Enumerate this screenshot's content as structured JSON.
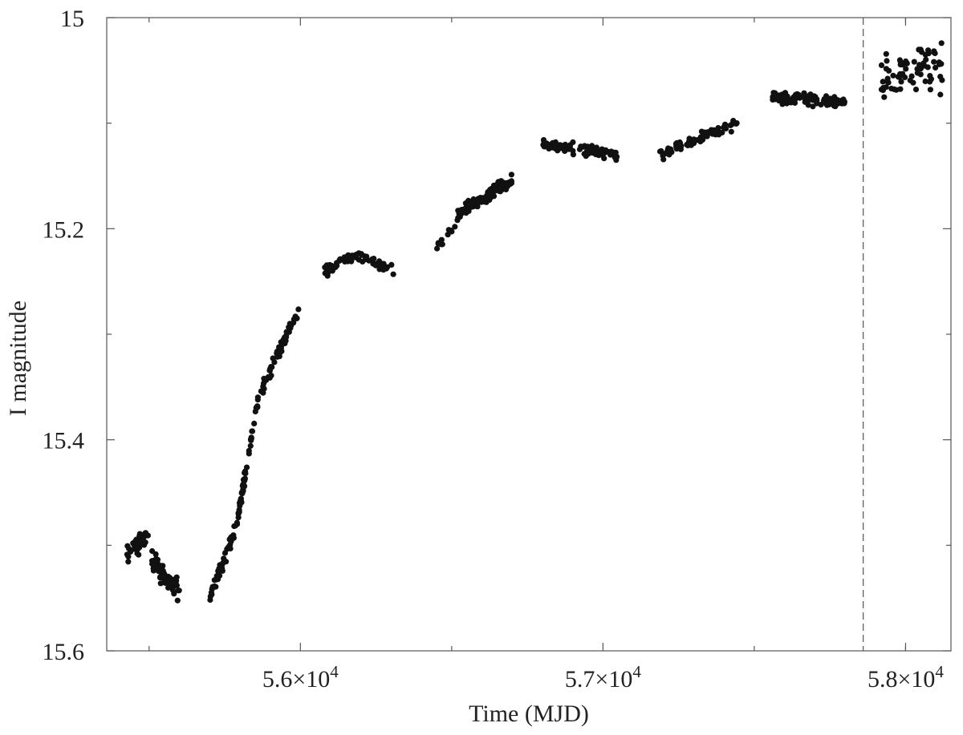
{
  "chart_data": {
    "type": "scatter",
    "title": "",
    "xlabel": "Time (MJD)",
    "ylabel": "I magnitude",
    "xlim": [
      55360,
      58150
    ],
    "ylim": [
      15.6,
      15.0
    ],
    "y_inverted": true,
    "grid": false,
    "x_ticks": [
      {
        "value": 56000,
        "mantissa": "5.6",
        "exponent": "4"
      },
      {
        "value": 57000,
        "mantissa": "5.7",
        "exponent": "4"
      },
      {
        "value": 58000,
        "mantissa": "5.8",
        "exponent": "4"
      }
    ],
    "y_ticks": [
      {
        "value": 15.0,
        "label": "15"
      },
      {
        "value": 15.2,
        "label": "15.2"
      },
      {
        "value": 15.4,
        "label": "15.4"
      },
      {
        "value": 15.6,
        "label": "15.6"
      }
    ],
    "x_minor_ticks": [
      55500,
      56500,
      57500,
      58000
    ],
    "y_minor_ticks": [
      15.1,
      15.3,
      15.5
    ],
    "vertical_marker_x": 57860,
    "marker_color": "#111111",
    "marker_line_color": "#555555",
    "segments": [
      {
        "x_start": 55420,
        "x_end": 55510,
        "y_start": 15.505,
        "y_end": 15.49,
        "scatter": 0.008,
        "n": 45
      },
      {
        "x_start": 55510,
        "x_end": 55600,
        "y_start": 15.515,
        "y_end": 15.545,
        "scatter": 0.009,
        "n": 70
      },
      {
        "x_start": 55700,
        "x_end": 55790,
        "y_start": 15.55,
        "y_end": 15.48,
        "scatter": 0.006,
        "n": 45
      },
      {
        "x_start": 55790,
        "x_end": 55860,
        "y_start": 15.48,
        "y_end": 15.36,
        "scatter": 0.006,
        "n": 50
      },
      {
        "x_start": 55860,
        "x_end": 55995,
        "y_start": 15.36,
        "y_end": 15.275,
        "scatter": 0.006,
        "n": 55
      },
      {
        "x_start": 56080,
        "x_end": 56180,
        "y_start": 15.24,
        "y_end": 15.225,
        "scatter": 0.005,
        "n": 35
      },
      {
        "x_start": 56180,
        "x_end": 56310,
        "y_start": 15.225,
        "y_end": 15.24,
        "scatter": 0.005,
        "n": 35
      },
      {
        "x_start": 56450,
        "x_end": 56520,
        "y_start": 15.22,
        "y_end": 15.19,
        "scatter": 0.006,
        "n": 12
      },
      {
        "x_start": 56520,
        "x_end": 56700,
        "y_start": 15.185,
        "y_end": 15.155,
        "scatter": 0.006,
        "n": 110
      },
      {
        "x_start": 56800,
        "x_end": 57050,
        "y_start": 15.12,
        "y_end": 15.13,
        "scatter": 0.005,
        "n": 90
      },
      {
        "x_start": 57180,
        "x_end": 57450,
        "y_start": 15.13,
        "y_end": 15.1,
        "scatter": 0.005,
        "n": 70
      },
      {
        "x_start": 57560,
        "x_end": 57800,
        "y_start": 15.075,
        "y_end": 15.08,
        "scatter": 0.005,
        "n": 110
      },
      {
        "x_start": 57920,
        "x_end": 58130,
        "y_start": 15.06,
        "y_end": 15.04,
        "scatter": 0.022,
        "n": 70
      }
    ]
  }
}
